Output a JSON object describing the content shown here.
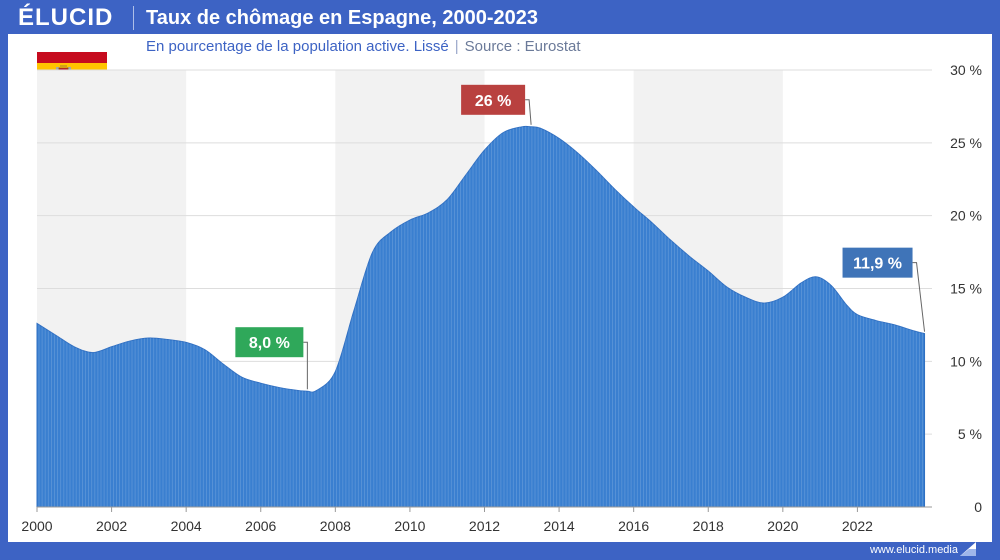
{
  "brand": {
    "logo": "ÉLUCID",
    "website": "www.elucid.media"
  },
  "colors": {
    "frame": "#3d63c4",
    "area": "#3a7fd0",
    "area_stroke": "#2f6fc2",
    "band": "#f2f2f2",
    "grid": "#dddddd",
    "axis_text": "#333333"
  },
  "header": {
    "title": "Taux de chômage en Espagne, 2000-2023",
    "subtitle": "En pourcentage de la population active. Lissé",
    "source": "Source : Eurostat"
  },
  "flag": {
    "country": "Espagne",
    "colors": [
      "#c60b1e",
      "#ffc400",
      "#c60b1e"
    ]
  },
  "chart_data": {
    "type": "area",
    "title": "Taux de chômage en Espagne, 2000-2023",
    "subtitle": "En pourcentage de la population active. Lissé",
    "xlabel": "",
    "ylabel": "",
    "xlim": [
      2000,
      2024
    ],
    "ylim": [
      0,
      30
    ],
    "x_ticks": [
      2000,
      2002,
      2004,
      2006,
      2008,
      2010,
      2012,
      2014,
      2016,
      2018,
      2020,
      2022
    ],
    "x_tick_labels": [
      "2000",
      "2002",
      "2004",
      "2006",
      "2008",
      "2010",
      "2012",
      "2014",
      "2016",
      "2018",
      "2020",
      "2022"
    ],
    "y_ticks": [
      0,
      5,
      10,
      15,
      20,
      25,
      30
    ],
    "y_tick_labels": [
      "0",
      "5 %",
      "10 %",
      "15 %",
      "20 %",
      "25 %",
      "30 %"
    ],
    "y_axis_side": "right",
    "shaded_bands": [
      [
        2000,
        2004
      ],
      [
        2008,
        2012
      ],
      [
        2016,
        2020
      ]
    ],
    "series": [
      {
        "name": "Taux de chômage (%)",
        "x": [
          2000.0,
          2000.5,
          2001.0,
          2001.5,
          2002.0,
          2002.5,
          2003.0,
          2003.5,
          2004.0,
          2004.5,
          2005.0,
          2005.5,
          2006.0,
          2006.5,
          2007.0,
          2007.25,
          2007.5,
          2008.0,
          2008.5,
          2009.0,
          2009.5,
          2010.0,
          2010.5,
          2011.0,
          2011.5,
          2012.0,
          2012.5,
          2013.0,
          2013.25,
          2013.5,
          2014.0,
          2014.5,
          2015.0,
          2015.5,
          2016.0,
          2016.5,
          2017.0,
          2017.5,
          2018.0,
          2018.5,
          2019.0,
          2019.5,
          2020.0,
          2020.5,
          2020.9,
          2021.3,
          2021.7,
          2022.0,
          2022.5,
          2023.0,
          2023.5,
          2023.8
        ],
        "values": [
          12.6,
          11.8,
          11.0,
          10.6,
          11.0,
          11.4,
          11.6,
          11.5,
          11.3,
          10.8,
          9.8,
          8.9,
          8.5,
          8.2,
          8.0,
          7.95,
          8.0,
          9.3,
          13.5,
          17.5,
          18.9,
          19.7,
          20.2,
          21.1,
          22.8,
          24.5,
          25.7,
          26.1,
          26.1,
          26.0,
          25.3,
          24.3,
          23.1,
          21.8,
          20.6,
          19.5,
          18.3,
          17.2,
          16.2,
          15.1,
          14.4,
          14.0,
          14.4,
          15.4,
          15.8,
          15.2,
          13.9,
          13.2,
          12.8,
          12.5,
          12.1,
          11.9
        ]
      }
    ],
    "annotations": [
      {
        "label": "8,0 %",
        "x": 2007.25,
        "y": 7.95,
        "color": "#2fa85a"
      },
      {
        "label": "26 %",
        "x": 2013.25,
        "y": 26.1,
        "color": "#b9413f"
      },
      {
        "label": "11,9 %",
        "x": 2023.8,
        "y": 11.9,
        "color": "#3f74b8"
      }
    ]
  }
}
